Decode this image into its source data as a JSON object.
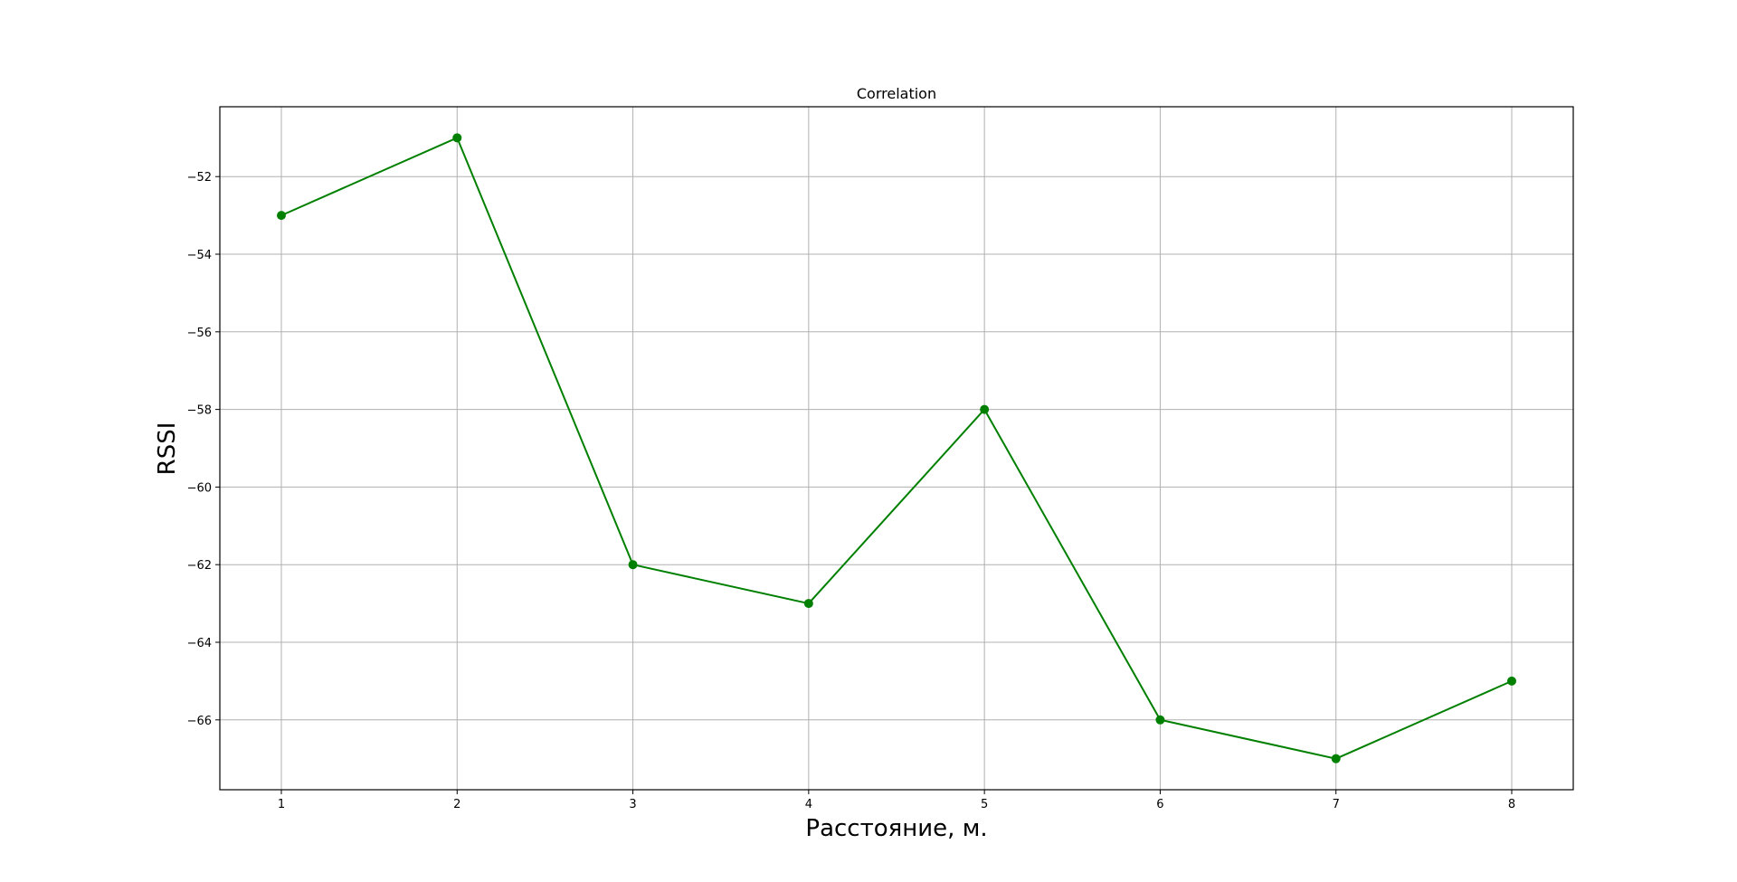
{
  "chart_data": {
    "type": "line",
    "title": "Correlation",
    "xlabel": "Расстояние, м.",
    "ylabel": "RSSI",
    "x": [
      1,
      2,
      3,
      4,
      5,
      6,
      7,
      8
    ],
    "series": [
      {
        "values": [
          -53,
          -51,
          -62,
          -63,
          -58,
          -66,
          -67,
          -65
        ],
        "color": "#008000",
        "marker": "circle"
      }
    ],
    "xlim": [
      0.65,
      8.35
    ],
    "ylim": [
      -67.8,
      -50.2
    ],
    "xticks": [
      1,
      2,
      3,
      4,
      5,
      6,
      7,
      8
    ],
    "xtick_labels": [
      "1",
      "2",
      "3",
      "4",
      "5",
      "6",
      "7",
      "8"
    ],
    "yticks": [
      -52,
      -54,
      -56,
      -58,
      -60,
      -62,
      -64,
      -66
    ],
    "ytick_labels": [
      "−52",
      "−54",
      "−56",
      "−58",
      "−60",
      "−62",
      "−64",
      "−66"
    ],
    "grid": true,
    "legend": "none"
  }
}
